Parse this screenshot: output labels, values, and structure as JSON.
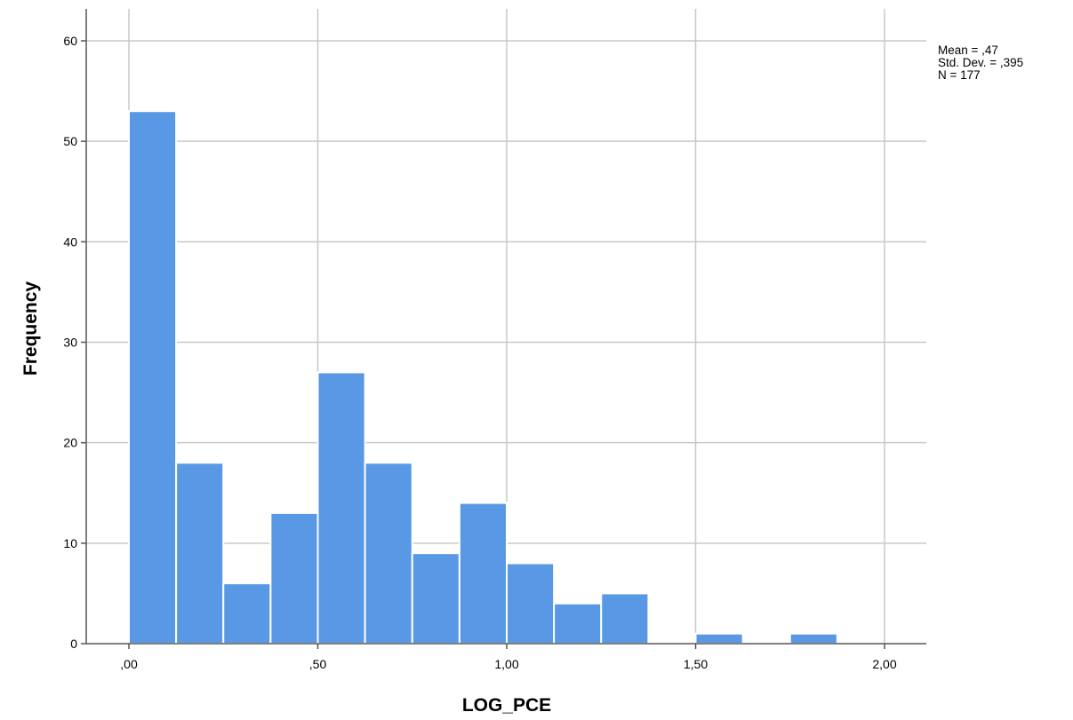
{
  "chart_data": {
    "type": "bar",
    "subtype": "histogram",
    "xlabel": "LOG_PCE",
    "ylabel": "Frequency",
    "xlim": [
      -0.125,
      2.125
    ],
    "ylim": [
      0,
      60
    ],
    "x_ticks": [
      0,
      0.5,
      1.0,
      1.5,
      2.0
    ],
    "x_tick_labels": [
      ",00",
      ",50",
      "1,00",
      "1,50",
      "2,00"
    ],
    "y_ticks": [
      0,
      10,
      20,
      30,
      40,
      50,
      60
    ],
    "y_tick_labels": [
      "0",
      "10",
      "20",
      "30",
      "40",
      "50",
      "60"
    ],
    "bin_width": 0.125,
    "bin_centers": [
      0.0625,
      0.1875,
      0.3125,
      0.4375,
      0.5625,
      0.6875,
      0.8125,
      0.9375,
      1.0625,
      1.1875,
      1.3125,
      1.4375,
      1.5625,
      1.6875,
      1.8125
    ],
    "values": [
      53,
      18,
      6,
      13,
      27,
      18,
      9,
      14,
      8,
      4,
      5,
      0,
      1,
      0,
      1
    ],
    "grid": true,
    "bar_color": "#5898e4",
    "bar_edge_color": "#ffffff",
    "grid_color": "#c8c8c8",
    "stats": [
      "Mean = ,47",
      "Std. Dev. = ,395",
      "N = 177"
    ],
    "stats_position": "top-right"
  }
}
